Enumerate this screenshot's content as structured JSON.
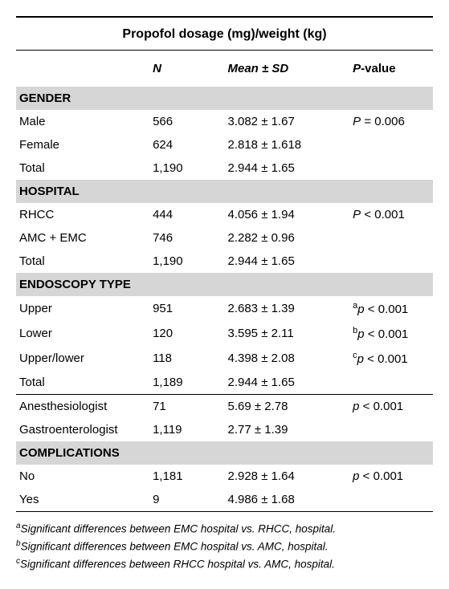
{
  "title": "Propofol dosage (mg)/weight (kg)",
  "headers": {
    "n": "N",
    "mean": "Mean ± SD",
    "pvalue": "-value",
    "p": "P"
  },
  "sections": [
    {
      "name": "GENDER",
      "rows": [
        {
          "label": "Male",
          "n": "566",
          "mean": "3.082 ± 1.67",
          "p_prefix": "",
          "p_lead": "P",
          "p_rest": " = 0.006"
        },
        {
          "label": "Female",
          "n": "624",
          "mean": "2.818 ± 1.618",
          "p_prefix": "",
          "p_lead": "",
          "p_rest": ""
        },
        {
          "label": "Total",
          "n": "1,190",
          "mean": "2.944 ± 1.65",
          "p_prefix": "",
          "p_lead": "",
          "p_rest": ""
        }
      ]
    },
    {
      "name": "HOSPITAL",
      "rows": [
        {
          "label": "RHCC",
          "n": "444",
          "mean": "4.056 ± 1.94",
          "p_prefix": "",
          "p_lead": "P",
          "p_rest": " < 0.001"
        },
        {
          "label": "AMC + EMC",
          "n": "746",
          "mean": "2.282 ± 0.96",
          "p_prefix": "",
          "p_lead": "",
          "p_rest": ""
        },
        {
          "label": "Total",
          "n": "1,190",
          "mean": "2.944 ± 1.65",
          "p_prefix": "",
          "p_lead": "",
          "p_rest": ""
        }
      ]
    },
    {
      "name": "ENDOSCOPY TYPE",
      "rows": [
        {
          "label": "Upper",
          "n": "951",
          "mean": "2.683 ± 1.39",
          "p_prefix": "a",
          "p_lead": "p",
          "p_rest": " < 0.001"
        },
        {
          "label": "Lower",
          "n": "120",
          "mean": "3.595 ± 2.11",
          "p_prefix": "b",
          "p_lead": "p",
          "p_rest": " < 0.001"
        },
        {
          "label": "Upper/lower",
          "n": "118",
          "mean": "4.398 ± 2.08",
          "p_prefix": "c",
          "p_lead": "p",
          "p_rest": " < 0.001"
        },
        {
          "label": "Total",
          "n": "1,189",
          "mean": "2.944 ± 1.65",
          "p_prefix": "",
          "p_lead": "",
          "p_rest": ""
        },
        {
          "label": "Anesthesiologist",
          "n": "71",
          "mean": "5.69 ± 2.78",
          "p_prefix": "",
          "p_lead": "p",
          "p_rest": " < 0.001",
          "sep": true
        },
        {
          "label": "Gastroenterologist",
          "n": "1,119",
          "mean": "2.77 ± 1.39",
          "p_prefix": "",
          "p_lead": "",
          "p_rest": ""
        }
      ]
    },
    {
      "name": "COMPLICATIONS",
      "rows": [
        {
          "label": "No",
          "n": "1,181",
          "mean": "2.928 ± 1.64",
          "p_prefix": "",
          "p_lead": "p",
          "p_rest": " < 0.001"
        },
        {
          "label": "Yes",
          "n": "9",
          "mean": "4.986 ± 1.68",
          "p_prefix": "",
          "p_lead": "",
          "p_rest": ""
        }
      ]
    }
  ],
  "footnotes": [
    {
      "sup": "a",
      "text": "Significant differences between EMC hospital vs. RHCC, hospital."
    },
    {
      "sup": "b",
      "text": "Significant differences between EMC hospital vs. AMC, hospital."
    },
    {
      "sup": "c",
      "text": "Significant differences between RHCC hospital vs. AMC, hospital."
    }
  ],
  "colors": {
    "section_bg": "#d6d6d6",
    "border": "#000000",
    "text": "#000000",
    "background": "#ffffff"
  }
}
